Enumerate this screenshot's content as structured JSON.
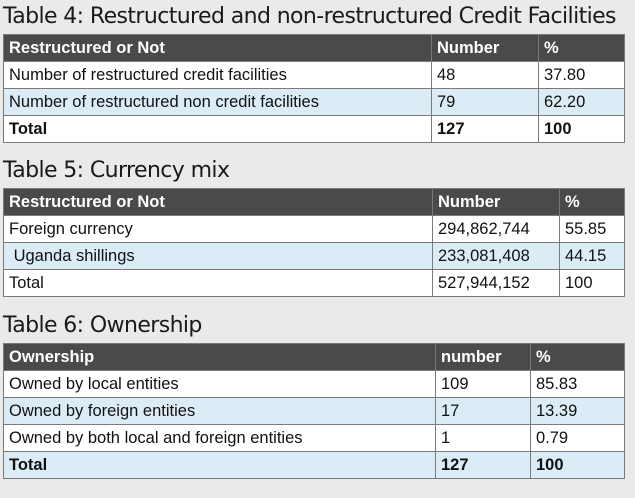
{
  "table4": {
    "title": "Table 4: Restructured and non-restructured Credit Facilities",
    "headers": [
      "Restructured or Not",
      "Number",
      "%"
    ],
    "rows": [
      [
        "Number of restructured credit facilities",
        "48",
        "37.80"
      ],
      [
        "Number of restructured non credit facilities",
        "79",
        "62.20"
      ],
      [
        "Total",
        "127",
        "100"
      ]
    ]
  },
  "table5": {
    "title": "Table 5: Currency mix",
    "headers": [
      "Restructured or Not",
      "Number",
      "%"
    ],
    "rows": [
      [
        "Foreign currency",
        "294,862,744",
        "55.85"
      ],
      [
        " Uganda shillings",
        "233,081,408",
        "44.15"
      ],
      [
        "Total",
        "527,944,152",
        "100"
      ]
    ]
  },
  "table6": {
    "title": "Table 6: Ownership",
    "headers": [
      "Ownership",
      "number",
      "%"
    ],
    "rows": [
      [
        "Owned by local entities",
        "109",
        "85.83"
      ],
      [
        "Owned by foreign entities",
        "17",
        "13.39"
      ],
      [
        "Owned by both local and foreign entities",
        "1",
        "0.79"
      ],
      [
        "Total",
        "127",
        "100"
      ]
    ]
  }
}
